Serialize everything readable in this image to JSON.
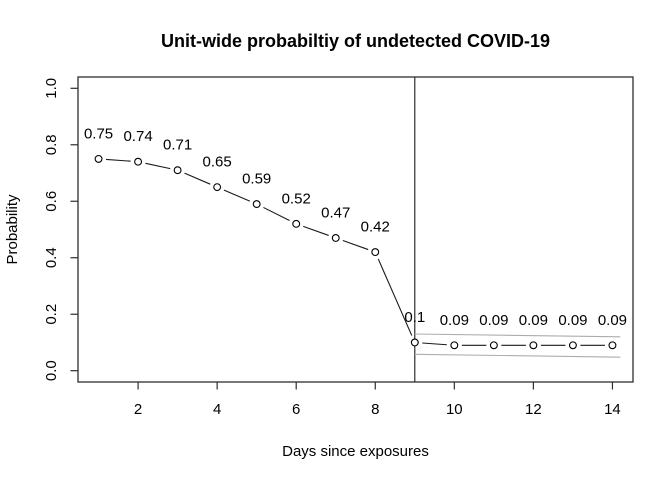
{
  "window": {
    "background": "#ffffff"
  },
  "chart_data": {
    "type": "line",
    "title": "Unit-wide probabiltiy of undetected COVID-19",
    "xlabel": "Days since exposures",
    "ylabel": "Probability",
    "x": [
      1,
      2,
      3,
      4,
      5,
      6,
      7,
      8,
      9,
      10,
      11,
      12,
      13,
      14
    ],
    "values": [
      0.75,
      0.74,
      0.71,
      0.65,
      0.59,
      0.52,
      0.47,
      0.42,
      0.1,
      0.09,
      0.09,
      0.09,
      0.09,
      0.09
    ],
    "point_labels": [
      "0.75",
      "0.74",
      "0.71",
      "0.65",
      "0.59",
      "0.52",
      "0.47",
      "0.42",
      "0.1",
      "0.09",
      "0.09",
      "0.09",
      "0.09",
      "0.09"
    ],
    "xticks": [
      2,
      4,
      6,
      8,
      10,
      12,
      14
    ],
    "ytick_labels": [
      "0.0",
      "0.2",
      "0.4",
      "0.6",
      "0.8",
      "1.0"
    ],
    "ytick_values": [
      0.0,
      0.2,
      0.4,
      0.6,
      0.8,
      1.0
    ],
    "xlim": [
      0.48,
      14.52
    ],
    "ylim": [
      -0.04,
      1.04
    ],
    "grid": false,
    "legend": "none",
    "vline_x": 9,
    "ci_upper": {
      "x": [
        9,
        14.2
      ],
      "v": [
        0.13,
        0.12
      ]
    },
    "ci_lower": {
      "x": [
        9,
        14.2
      ],
      "v": [
        0.058,
        0.048
      ]
    },
    "marker": "open-circle",
    "line_style": "segments-with-gaps",
    "colors": {
      "point_stroke": "#000000",
      "point_fill": "#ffffff",
      "series_line": "#1a1a1a",
      "ci_line": "#adadad",
      "box": "#2e2e2e",
      "vline": "#1a1a1a",
      "text": "#000000",
      "background": "#ffffff"
    }
  }
}
